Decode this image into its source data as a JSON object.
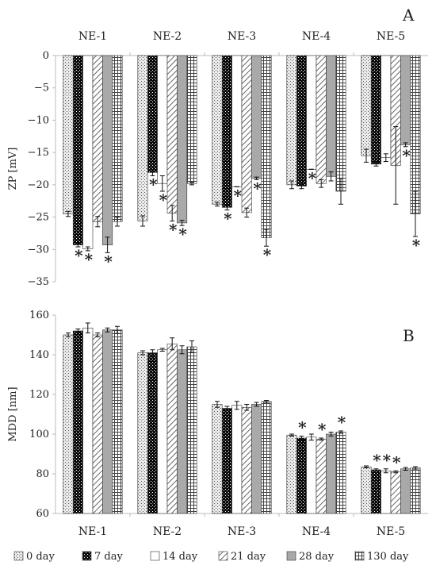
{
  "chart_data": [
    {
      "type": "bar",
      "panel_label": "A",
      "ylabel": "ZP [mV]",
      "ylim": [
        -35,
        0
      ],
      "yticks": [
        0,
        -5,
        -10,
        -15,
        -20,
        -25,
        -30,
        -35
      ],
      "category_axis_position": "top",
      "grid": false,
      "categories": [
        "NE-1",
        "NE-2",
        "NE-3",
        "NE-4",
        "NE-5"
      ],
      "series": [
        {
          "name": "0 day",
          "values": [
            -24.5,
            -25.6,
            -23.0,
            -20.0,
            -15.5
          ],
          "errors": [
            0.4,
            0.8,
            0.3,
            0.6,
            1.0
          ],
          "significant": [
            false,
            false,
            false,
            false,
            false
          ]
        },
        {
          "name": "7 day",
          "values": [
            -29.3,
            -18.1,
            -23.5,
            -20.2,
            -16.8
          ],
          "errors": [
            0.3,
            0.5,
            0.4,
            0.4,
            0.3
          ],
          "significant": [
            true,
            true,
            true,
            false,
            false
          ]
        },
        {
          "name": "14 day",
          "values": [
            -29.9,
            -19.8,
            -20.3,
            -17.6,
            -15.8
          ],
          "errors": [
            0.3,
            1.2,
            0.0,
            0.0,
            0.6
          ],
          "significant": [
            true,
            true,
            true,
            true,
            false
          ]
        },
        {
          "name": "21 day",
          "values": [
            -25.7,
            -24.4,
            -24.3,
            -19.8,
            -17.0
          ],
          "errors": [
            0.8,
            1.2,
            0.7,
            0.6,
            6.0
          ],
          "significant": [
            false,
            true,
            false,
            false,
            false
          ]
        },
        {
          "name": "28 day",
          "values": [
            -29.3,
            -25.9,
            -19.0,
            -18.7,
            -13.8
          ],
          "errors": [
            1.2,
            0.4,
            0.2,
            0.7,
            0.3
          ],
          "significant": [
            true,
            true,
            true,
            false,
            true
          ]
        },
        {
          "name": "130 day",
          "values": [
            -25.7,
            -19.8,
            -28.2,
            -21.0,
            -24.5
          ],
          "errors": [
            0.7,
            0.2,
            1.3,
            2.0,
            3.5
          ],
          "significant": [
            false,
            false,
            true,
            false,
            true
          ]
        }
      ]
    },
    {
      "type": "bar",
      "panel_label": "B",
      "ylabel": "MDD [nm]",
      "ylim": [
        60,
        160
      ],
      "yticks": [
        60,
        80,
        100,
        120,
        140,
        160
      ],
      "category_axis_position": "bottom",
      "grid": false,
      "categories": [
        "NE-1",
        "NE-2",
        "NE-3",
        "NE-4",
        "NE-5"
      ],
      "series": [
        {
          "name": "0 day",
          "values": [
            150.0,
            141.0,
            115.0,
            99.5,
            83.5
          ],
          "errors": [
            1.0,
            1.0,
            1.5,
            0.5,
            0.5
          ],
          "significant": [
            false,
            false,
            false,
            false,
            false
          ]
        },
        {
          "name": "7 day",
          "values": [
            152.0,
            141.0,
            113.0,
            98.0,
            82.0
          ],
          "errors": [
            1.0,
            1.5,
            1.0,
            1.0,
            0.5
          ],
          "significant": [
            false,
            false,
            false,
            true,
            true
          ]
        },
        {
          "name": "14 day",
          "values": [
            153.5,
            142.5,
            114.5,
            98.5,
            81.5
          ],
          "errors": [
            2.5,
            0.7,
            2.0,
            1.5,
            1.0
          ],
          "significant": [
            false,
            false,
            false,
            false,
            true
          ]
        },
        {
          "name": "21 day",
          "values": [
            150.0,
            145.5,
            113.5,
            97.5,
            81.0
          ],
          "errors": [
            1.0,
            3.0,
            1.5,
            0.5,
            0.5
          ],
          "significant": [
            false,
            false,
            false,
            true,
            true
          ]
        },
        {
          "name": "28 day",
          "values": [
            152.5,
            142.5,
            115.0,
            100.0,
            82.5
          ],
          "errors": [
            1.0,
            2.0,
            1.0,
            1.0,
            0.7
          ],
          "significant": [
            false,
            false,
            false,
            false,
            false
          ]
        },
        {
          "name": "130 day",
          "values": [
            152.5,
            144.0,
            116.5,
            101.0,
            83.0
          ],
          "errors": [
            1.8,
            3.0,
            0.5,
            0.6,
            0.6
          ],
          "significant": [
            false,
            false,
            false,
            true,
            false
          ]
        }
      ]
    }
  ],
  "significance_marker": "*",
  "legend": {
    "placement": "bottom",
    "entries": [
      "0 day",
      "7 day",
      "14 day",
      "21 day",
      "28 day",
      "130 day"
    ]
  }
}
